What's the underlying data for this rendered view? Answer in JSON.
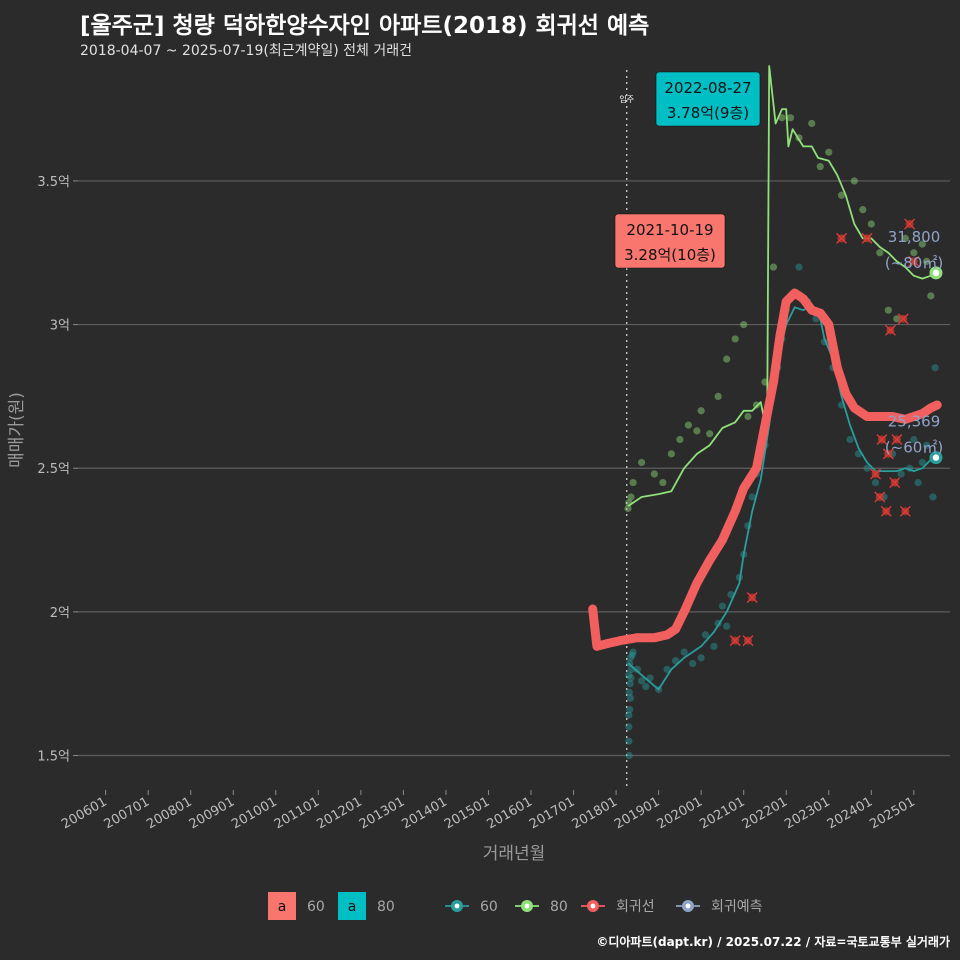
{
  "header": {
    "title": "[울주군] 청량 덕하한양수자인 아파트(2018) 회귀선 예측",
    "subtitle": "2018-04-07 ~ 2025-07-19(최근계약일) 전체 거래건"
  },
  "caption": "©디아파트(dapt.kr) / 2025.07.22 / 자료=국토교통부 실거래가",
  "colors": {
    "background": "#2b2b2b",
    "area60": "#2a9d9d",
    "area80": "#90e07a",
    "regression": "#f25f5f",
    "forecast": "#8fa3c8",
    "label60": "#f8766d",
    "label80": "#00bfc4"
  },
  "chart_data": {
    "type": "line",
    "xlabel": "거래년월",
    "ylabel": "매매가(원)",
    "x_ticks": [
      "200601",
      "200701",
      "200801",
      "200901",
      "201001",
      "201101",
      "201201",
      "201301",
      "201401",
      "201501",
      "201601",
      "201701",
      "201801",
      "201901",
      "202001",
      "202101",
      "202201",
      "202301",
      "202401",
      "202501"
    ],
    "y_ticks": [
      {
        "value": 1.5,
        "label": "1.5억"
      },
      {
        "value": 2.0,
        "label": "2억"
      },
      {
        "value": 2.5,
        "label": "2.5억"
      },
      {
        "value": 3.0,
        "label": "3억"
      },
      {
        "value": 3.5,
        "label": "3.5억"
      }
    ],
    "ylim": [
      1.38,
      3.9
    ],
    "grid": true,
    "vline": {
      "x": 2018.25,
      "label": "입주"
    },
    "series": [
      {
        "name": "80",
        "kind": "moving-avg",
        "points": [
          [
            2018.3,
            2.37
          ],
          [
            2018.6,
            2.4
          ],
          [
            2019.0,
            2.41
          ],
          [
            2019.3,
            2.42
          ],
          [
            2019.6,
            2.5
          ],
          [
            2019.9,
            2.55
          ],
          [
            2020.2,
            2.58
          ],
          [
            2020.5,
            2.64
          ],
          [
            2020.8,
            2.66
          ],
          [
            2021.0,
            2.7
          ],
          [
            2021.2,
            2.7
          ],
          [
            2021.4,
            2.73
          ],
          [
            2021.55,
            2.62
          ],
          [
            2021.6,
            3.9
          ],
          [
            2021.75,
            3.7
          ],
          [
            2021.9,
            3.75
          ],
          [
            2022.0,
            3.75
          ],
          [
            2022.05,
            3.62
          ],
          [
            2022.15,
            3.68
          ],
          [
            2022.4,
            3.62
          ],
          [
            2022.6,
            3.62
          ],
          [
            2022.75,
            3.58
          ],
          [
            2023.0,
            3.57
          ],
          [
            2023.2,
            3.52
          ],
          [
            2023.4,
            3.45
          ],
          [
            2023.6,
            3.35
          ],
          [
            2023.8,
            3.3
          ],
          [
            2024.0,
            3.3
          ],
          [
            2024.2,
            3.27
          ],
          [
            2024.4,
            3.25
          ],
          [
            2024.6,
            3.22
          ],
          [
            2024.8,
            3.2
          ],
          [
            2025.0,
            3.17
          ],
          [
            2025.2,
            3.16
          ],
          [
            2025.4,
            3.17
          ]
        ]
      },
      {
        "name": "60",
        "kind": "moving-avg",
        "points": [
          [
            2018.3,
            1.82
          ],
          [
            2018.6,
            1.78
          ],
          [
            2019.0,
            1.73
          ],
          [
            2019.3,
            1.8
          ],
          [
            2019.6,
            1.84
          ],
          [
            2020.0,
            1.88
          ],
          [
            2020.3,
            1.93
          ],
          [
            2020.6,
            2.0
          ],
          [
            2020.9,
            2.1
          ],
          [
            2021.0,
            2.2
          ],
          [
            2021.2,
            2.35
          ],
          [
            2021.4,
            2.46
          ],
          [
            2021.6,
            2.65
          ],
          [
            2021.8,
            2.88
          ],
          [
            2022.0,
            3.0
          ],
          [
            2022.2,
            3.06
          ],
          [
            2022.4,
            3.05
          ],
          [
            2022.6,
            3.07
          ],
          [
            2022.8,
            3.02
          ],
          [
            2022.9,
            2.95
          ],
          [
            2023.1,
            2.88
          ],
          [
            2023.3,
            2.75
          ],
          [
            2023.5,
            2.65
          ],
          [
            2023.7,
            2.57
          ],
          [
            2023.9,
            2.52
          ],
          [
            2024.1,
            2.49
          ],
          [
            2024.4,
            2.49
          ],
          [
            2024.6,
            2.49
          ],
          [
            2024.8,
            2.5
          ],
          [
            2025.0,
            2.49
          ],
          [
            2025.2,
            2.5
          ],
          [
            2025.4,
            2.53
          ]
        ]
      },
      {
        "name": "회귀선",
        "kind": "regression",
        "points": [
          [
            2017.45,
            2.01
          ],
          [
            2017.55,
            1.88
          ],
          [
            2017.8,
            1.89
          ],
          [
            2018.1,
            1.9
          ],
          [
            2018.5,
            1.91
          ],
          [
            2018.9,
            1.91
          ],
          [
            2019.2,
            1.92
          ],
          [
            2019.4,
            1.94
          ],
          [
            2019.6,
            2.0
          ],
          [
            2019.9,
            2.1
          ],
          [
            2020.2,
            2.18
          ],
          [
            2020.5,
            2.25
          ],
          [
            2020.8,
            2.35
          ],
          [
            2021.0,
            2.43
          ],
          [
            2021.3,
            2.5
          ],
          [
            2021.5,
            2.65
          ],
          [
            2021.7,
            2.8
          ],
          [
            2021.85,
            2.96
          ],
          [
            2022.0,
            3.08
          ],
          [
            2022.2,
            3.11
          ],
          [
            2022.4,
            3.09
          ],
          [
            2022.6,
            3.05
          ],
          [
            2022.8,
            3.04
          ],
          [
            2023.0,
            3.0
          ],
          [
            2023.2,
            2.85
          ],
          [
            2023.4,
            2.76
          ],
          [
            2023.6,
            2.71
          ],
          [
            2023.9,
            2.68
          ],
          [
            2024.2,
            2.68
          ],
          [
            2024.5,
            2.68
          ],
          [
            2024.8,
            2.67
          ],
          [
            2025.0,
            2.68
          ],
          [
            2025.2,
            2.69
          ],
          [
            2025.4,
            2.71
          ],
          [
            2025.55,
            2.72
          ]
        ]
      }
    ],
    "scatter": {
      "60": [
        [
          2018.3,
          1.6
        ],
        [
          2018.3,
          1.64
        ],
        [
          2018.32,
          1.66
        ],
        [
          2018.34,
          1.7
        ],
        [
          2018.31,
          1.72
        ],
        [
          2018.33,
          1.75
        ],
        [
          2018.35,
          1.77
        ],
        [
          2018.3,
          1.78
        ],
        [
          2018.36,
          1.8
        ],
        [
          2018.32,
          1.82
        ],
        [
          2018.34,
          1.84
        ],
        [
          2018.38,
          1.85
        ],
        [
          2018.3,
          1.55
        ],
        [
          2018.31,
          1.5
        ],
        [
          2018.4,
          1.86
        ],
        [
          2018.5,
          1.8
        ],
        [
          2018.6,
          1.76
        ],
        [
          2018.7,
          1.74
        ],
        [
          2018.8,
          1.77
        ],
        [
          2019.0,
          1.73
        ],
        [
          2019.2,
          1.8
        ],
        [
          2019.4,
          1.83
        ],
        [
          2019.6,
          1.86
        ],
        [
          2019.8,
          1.82
        ],
        [
          2020.0,
          1.84
        ],
        [
          2020.1,
          1.92
        ],
        [
          2020.3,
          1.88
        ],
        [
          2020.4,
          1.96
        ],
        [
          2020.5,
          2.02
        ],
        [
          2020.6,
          1.95
        ],
        [
          2020.7,
          2.06
        ],
        [
          2020.9,
          2.12
        ],
        [
          2021.0,
          2.2
        ],
        [
          2021.1,
          2.3
        ],
        [
          2021.2,
          2.4
        ],
        [
          2021.3,
          2.48
        ],
        [
          2021.5,
          2.58
        ],
        [
          2021.6,
          2.72
        ],
        [
          2021.8,
          2.85
        ],
        [
          2021.9,
          2.95
        ],
        [
          2022.0,
          3.05
        ],
        [
          2022.1,
          3.1
        ],
        [
          2022.3,
          3.2
        ],
        [
          2022.5,
          3.08
        ],
        [
          2022.7,
          3.02
        ],
        [
          2022.9,
          2.94
        ],
        [
          2023.1,
          2.85
        ],
        [
          2023.3,
          2.72
        ],
        [
          2023.5,
          2.6
        ],
        [
          2023.7,
          2.55
        ],
        [
          2023.9,
          2.5
        ],
        [
          2024.1,
          2.45
        ],
        [
          2024.3,
          2.4
        ],
        [
          2024.5,
          2.55
        ],
        [
          2024.7,
          2.48
        ],
        [
          2024.9,
          2.5
        ],
        [
          2025.0,
          2.6
        ],
        [
          2025.1,
          2.45
        ],
        [
          2025.2,
          2.52
        ],
        [
          2025.3,
          2.58
        ],
        [
          2025.45,
          2.4
        ],
        [
          2025.5,
          2.85
        ]
      ],
      "80": [
        [
          2018.28,
          2.36
        ],
        [
          2018.3,
          2.38
        ],
        [
          2018.35,
          2.4
        ],
        [
          2018.4,
          2.45
        ],
        [
          2018.6,
          2.52
        ],
        [
          2018.9,
          2.48
        ],
        [
          2019.1,
          2.45
        ],
        [
          2019.3,
          2.55
        ],
        [
          2019.5,
          2.6
        ],
        [
          2019.7,
          2.65
        ],
        [
          2019.9,
          2.63
        ],
        [
          2020.0,
          2.7
        ],
        [
          2020.2,
          2.62
        ],
        [
          2020.4,
          2.75
        ],
        [
          2020.6,
          2.88
        ],
        [
          2020.8,
          2.95
        ],
        [
          2021.0,
          3.0
        ],
        [
          2021.1,
          2.68
        ],
        [
          2021.3,
          2.72
        ],
        [
          2021.5,
          2.8
        ],
        [
          2021.7,
          3.2
        ],
        [
          2021.9,
          3.72
        ],
        [
          2022.1,
          3.72
        ],
        [
          2022.3,
          3.65
        ],
        [
          2022.6,
          3.7
        ],
        [
          2022.8,
          3.55
        ],
        [
          2023.0,
          3.6
        ],
        [
          2023.3,
          3.45
        ],
        [
          2023.6,
          3.5
        ],
        [
          2023.8,
          3.4
        ],
        [
          2024.0,
          3.35
        ],
        [
          2024.2,
          3.25
        ],
        [
          2024.4,
          3.05
        ],
        [
          2024.6,
          3.02
        ],
        [
          2024.8,
          3.3
        ],
        [
          2025.0,
          3.25
        ],
        [
          2025.2,
          3.28
        ],
        [
          2025.3,
          3.22
        ],
        [
          2025.4,
          3.1
        ]
      ]
    },
    "outliers": [
      [
        2020.8,
        1.9
      ],
      [
        2021.1,
        1.9
      ],
      [
        2021.2,
        2.05
      ],
      [
        2023.3,
        3.3
      ],
      [
        2023.9,
        3.3
      ],
      [
        2024.1,
        2.48
      ],
      [
        2024.2,
        2.4
      ],
      [
        2024.25,
        2.6
      ],
      [
        2024.35,
        2.35
      ],
      [
        2024.4,
        2.55
      ],
      [
        2024.45,
        2.98
      ],
      [
        2024.6,
        2.6
      ],
      [
        2024.75,
        3.02
      ],
      [
        2024.8,
        2.35
      ],
      [
        2024.9,
        3.35
      ],
      [
        2025.0,
        3.22
      ],
      [
        2024.55,
        2.45
      ]
    ],
    "annotations": [
      {
        "kind": "max-label",
        "series": "80",
        "date": "2022-08-27",
        "text": "3.78억(9층)",
        "x": 2022.0,
        "y": 3.78
      },
      {
        "kind": "max-label",
        "series": "60",
        "date": "2021-10-19",
        "text": "3.28억(10층)",
        "x": 2021.8,
        "y": 3.28
      }
    ],
    "forecasts": [
      {
        "series": "80",
        "value": "31,800",
        "area": "(~80㎡)",
        "x": 2025.52,
        "y": 3.18
      },
      {
        "series": "60",
        "value": "25,369",
        "area": "(~60㎡)",
        "x": 2025.52,
        "y": 2.537
      }
    ],
    "legend": {
      "position": "bottom",
      "fill_items": [
        {
          "key": "a",
          "label": "60"
        },
        {
          "key": "a",
          "label": "80"
        }
      ],
      "line_items": [
        {
          "label": "60"
        },
        {
          "label": "80"
        },
        {
          "label": "회귀선"
        },
        {
          "label": "회귀예측"
        }
      ]
    }
  }
}
